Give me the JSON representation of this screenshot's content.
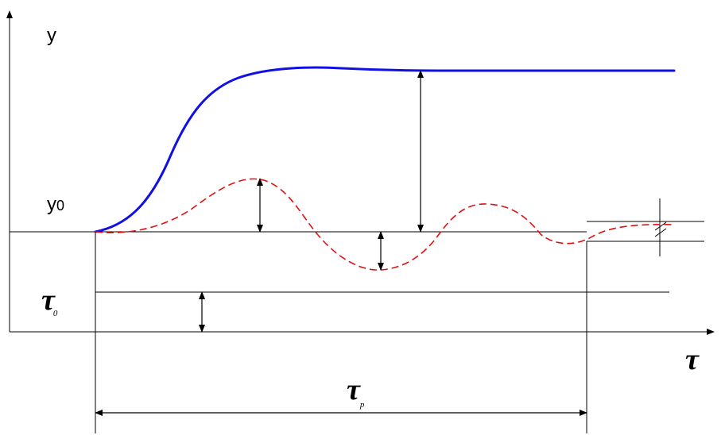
{
  "labels": {
    "y_axis": "y",
    "y0_main": "y",
    "y0_sub": "0",
    "tau0_main": "τ",
    "tau0_sub": "0",
    "tau_axis": "τ",
    "taup_main": "τ",
    "taup_sub": "p"
  },
  "colors": {
    "step_response": "#1010e6",
    "disturbance_response": "#e01010",
    "lines": "#000000"
  }
}
